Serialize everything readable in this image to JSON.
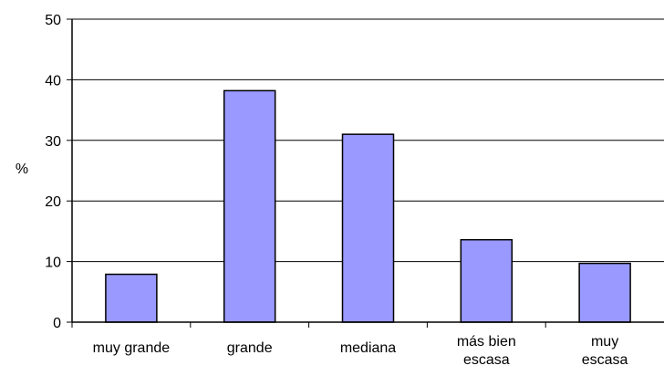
{
  "chart_data": {
    "type": "bar",
    "categories": [
      [
        "muy grande"
      ],
      [
        "grande"
      ],
      [
        "mediana"
      ],
      [
        "más bien",
        "escasa"
      ],
      [
        "muy",
        "escasa"
      ]
    ],
    "values": [
      7.9,
      38.2,
      31.0,
      13.6,
      9.7
    ],
    "title": "",
    "xlabel": "",
    "ylabel": "%",
    "ylim": [
      0,
      50
    ],
    "yticks": [
      0,
      10,
      20,
      30,
      40,
      50
    ],
    "grid": true,
    "legend": "none",
    "colors": {
      "bar_fill": "#9999ff",
      "bar_stroke": "#000000",
      "gridline": "#000000",
      "axis": "#000000",
      "background": "#ffffff"
    }
  }
}
